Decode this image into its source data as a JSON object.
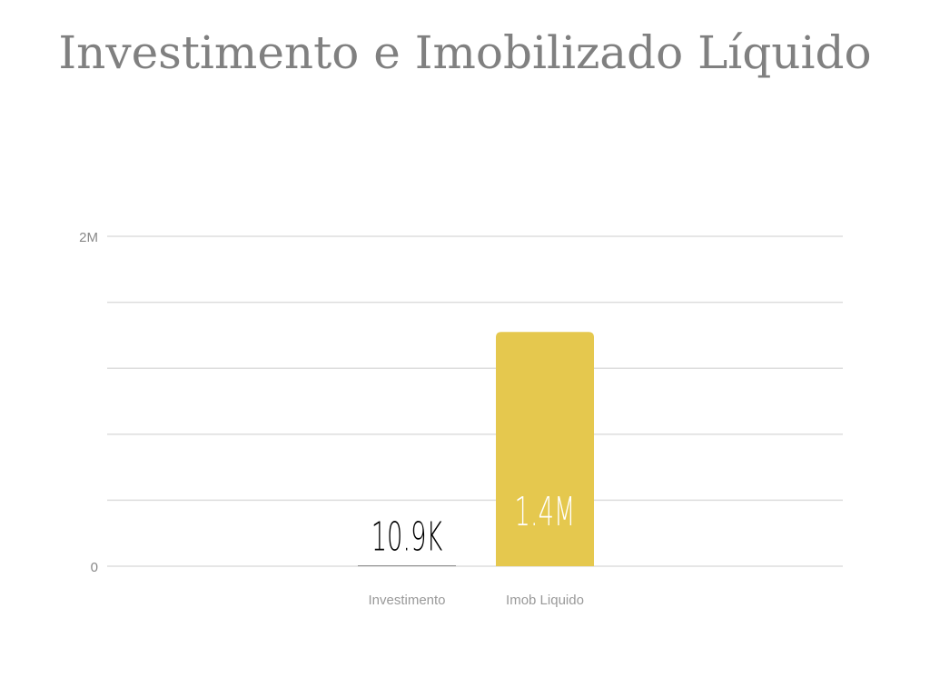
{
  "chart_data": {
    "type": "bar",
    "title": "Investimento e Imobilizado Líquido",
    "categories": [
      "Investimento",
      "Imob Liquido"
    ],
    "values": [
      10900,
      1420000
    ],
    "value_labels": [
      "10.9K",
      "1.4M"
    ],
    "colors": [
      "#8c8c8c",
      "#e5c84e"
    ],
    "ylim": [
      0,
      2000000
    ],
    "yticks": [
      0,
      {
        "value": 400000,
        "label": null
      },
      {
        "value": 800000,
        "label": null
      },
      {
        "value": 1200000,
        "label": null
      },
      {
        "value": 1600000,
        "label": null
      },
      {
        "value": 2000000,
        "label": "2M"
      }
    ],
    "grid": true
  }
}
